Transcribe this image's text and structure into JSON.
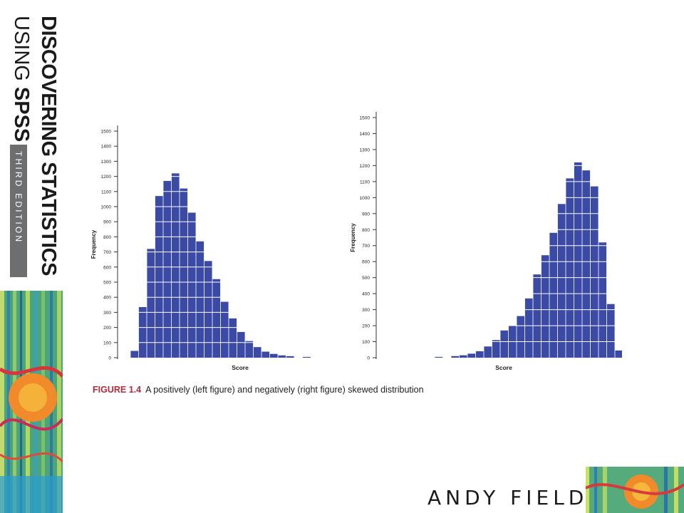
{
  "book": {
    "title_line1": "DISCOVERING STATISTICS",
    "title_line2_a": "USING ",
    "title_line2_b": "SPSS",
    "edition": "THIRD EDITION",
    "author": "ANDY FIELD"
  },
  "caption": {
    "figure": "FIGURE 1.4",
    "text": "A positively (left figure) and negatively (right figure) skewed distribution"
  },
  "colors": {
    "bar": "#3b4ba5",
    "grid": "#ffffff",
    "caption_accent": "#b02b3a",
    "badge": "#6d6e70"
  },
  "chart_data": [
    {
      "type": "bar",
      "title": "",
      "xlabel": "Score",
      "ylabel": "Frequency",
      "ylim": [
        0,
        1500
      ],
      "yticks": [
        0,
        100,
        200,
        300,
        400,
        500,
        600,
        700,
        800,
        900,
        1000,
        1100,
        1200,
        1300,
        1400,
        1500
      ],
      "values": [
        45,
        335,
        720,
        1070,
        1170,
        1220,
        1120,
        960,
        770,
        640,
        520,
        370,
        260,
        170,
        110,
        70,
        40,
        25,
        15,
        10,
        0,
        5
      ]
    },
    {
      "type": "bar",
      "title": "",
      "xlabel": "Score",
      "ylabel": "Frequency",
      "ylim": [
        0,
        1500
      ],
      "yticks": [
        0,
        100,
        200,
        300,
        400,
        500,
        600,
        700,
        800,
        900,
        1000,
        1100,
        1200,
        1300,
        1400,
        1500
      ],
      "values": [
        5,
        0,
        10,
        15,
        25,
        40,
        70,
        110,
        170,
        200,
        260,
        370,
        520,
        640,
        780,
        960,
        1120,
        1220,
        1170,
        1070,
        720,
        335,
        45
      ]
    }
  ]
}
